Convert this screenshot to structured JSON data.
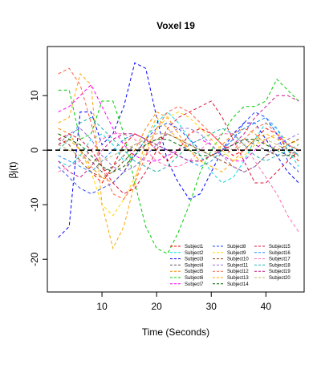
{
  "chart_data": {
    "type": "line",
    "title": "Voxel 19",
    "xlabel": "Time (Seconds)",
    "ylabel": "βj(t)",
    "xlim": [
      0,
      47
    ],
    "ylim": [
      -26,
      19
    ],
    "x_ticks": [
      10,
      20,
      30,
      40
    ],
    "y_ticks": [
      -20,
      -10,
      0,
      10
    ],
    "reference_line": {
      "y": 0,
      "style": "dashed",
      "color": "#000000"
    },
    "x": [
      2,
      4,
      6,
      8,
      10,
      12,
      14,
      16,
      18,
      20,
      22,
      24,
      26,
      28,
      30,
      32,
      34,
      36,
      38,
      40,
      42,
      44,
      46
    ],
    "series": [
      {
        "name": "Subject1",
        "color": "#FF0000",
        "values": [
          1,
          2,
          0,
          -4,
          -6,
          -3,
          1,
          3,
          2,
          0,
          -2,
          0,
          3,
          4,
          3,
          1,
          -1,
          0,
          2,
          4,
          3,
          0,
          -2
        ]
      },
      {
        "name": "Subject2",
        "color": "#00DDDD",
        "values": [
          -2,
          -3,
          -1,
          2,
          3,
          1,
          -2,
          -1,
          2,
          5,
          7,
          5,
          2,
          -1,
          -4,
          -6,
          -5,
          -2,
          2,
          5,
          4,
          0,
          -3
        ]
      },
      {
        "name": "Subject3",
        "color": "#0000FF",
        "values": [
          -16,
          -14,
          7,
          7,
          1,
          3,
          8,
          16,
          15,
          6,
          -2,
          -6,
          -9,
          -8,
          -4,
          0,
          3,
          5,
          5,
          2,
          -1,
          -4,
          -6
        ]
      },
      {
        "name": "Subject4",
        "color": "#555555",
        "values": [
          3,
          2,
          0,
          -2,
          -4,
          -3,
          -1,
          1,
          2,
          1,
          0,
          -1,
          -2,
          -2,
          -1,
          0,
          1,
          2,
          1,
          0,
          -1,
          -1,
          0
        ]
      },
      {
        "name": "Subject5",
        "color": "#FF8800",
        "values": [
          4,
          3,
          0,
          -3,
          -5,
          -6,
          -4,
          0,
          4,
          7,
          6,
          3,
          0,
          -2,
          -1,
          1,
          3,
          4,
          3,
          1,
          0,
          1,
          2
        ]
      },
      {
        "name": "Subject6",
        "color": "#00CC00",
        "values": [
          11,
          11,
          2,
          3,
          9,
          9,
          3,
          -6,
          -14,
          -18,
          -19,
          -15,
          -10,
          -4,
          0,
          3,
          6,
          8,
          8,
          9,
          13,
          11,
          9
        ]
      },
      {
        "name": "Subject7",
        "color": "#FF00FF",
        "values": [
          7,
          8,
          10,
          12,
          8,
          4,
          1,
          -1,
          -2,
          -2,
          -1,
          0,
          1,
          2,
          1,
          -1,
          -2,
          -2,
          0,
          2,
          3,
          1,
          0
        ]
      },
      {
        "name": "Subject8",
        "color": "#2244FF",
        "values": [
          -3,
          -5,
          -7,
          -8,
          -7,
          -6,
          -4,
          -1,
          2,
          4,
          5,
          4,
          2,
          0,
          -1,
          0,
          2,
          5,
          7,
          6,
          3,
          -2,
          -4
        ]
      },
      {
        "name": "Subject9",
        "color": "#FFD700",
        "values": [
          3,
          2,
          0,
          -4,
          -10,
          -12,
          -9,
          -5,
          0,
          4,
          6,
          7,
          6,
          4,
          2,
          0,
          -2,
          -1,
          1,
          2,
          3,
          2,
          1
        ]
      },
      {
        "name": "Subject10",
        "color": "#8B4513",
        "values": [
          2,
          1,
          -2,
          -4,
          -5,
          -4,
          -2,
          0,
          1,
          2,
          3,
          2,
          1,
          0,
          -1,
          -2,
          -3,
          -4,
          -3,
          -1,
          0,
          1,
          2
        ]
      },
      {
        "name": "Subject11",
        "color": "#9370DB",
        "values": [
          1,
          3,
          4,
          2,
          -1,
          -3,
          -4,
          -3,
          -1,
          1,
          3,
          4,
          4,
          3,
          1,
          -1,
          -3,
          -4,
          -3,
          -1,
          1,
          2,
          3
        ]
      },
      {
        "name": "Subject12",
        "color": "#FF6347",
        "values": [
          14,
          15,
          12,
          5,
          -3,
          -8,
          -9,
          -6,
          -1,
          4,
          7,
          8,
          7,
          5,
          3,
          1,
          0,
          2,
          4,
          5,
          3,
          1,
          0
        ]
      },
      {
        "name": "Subject13",
        "color": "#FFA500",
        "values": [
          5,
          6,
          14,
          12,
          -10,
          -18,
          -14,
          -6,
          2,
          6,
          4,
          2,
          0,
          -2,
          -3,
          -4,
          -2,
          0,
          2,
          3,
          2,
          1,
          0
        ]
      },
      {
        "name": "Subject14",
        "color": "#006400",
        "values": [
          3,
          2,
          1,
          -1,
          -3,
          -4,
          -3,
          -1,
          1,
          2,
          2,
          1,
          0,
          -1,
          -1,
          0,
          1,
          2,
          2,
          1,
          0,
          -1,
          -1
        ]
      },
      {
        "name": "Subject15",
        "color": "#DC143C",
        "values": [
          2,
          3,
          2,
          0,
          -3,
          -6,
          -8,
          -7,
          -4,
          0,
          4,
          6,
          7,
          8,
          9,
          6,
          2,
          -2,
          -6,
          -6,
          -4,
          -2,
          0
        ]
      },
      {
        "name": "Subject16",
        "color": "#1E90FF",
        "values": [
          -1,
          -2,
          -3,
          -4,
          -2,
          0,
          2,
          3,
          2,
          1,
          0,
          -1,
          -2,
          -3,
          -2,
          0,
          2,
          4,
          5,
          6,
          4,
          1,
          -1
        ]
      },
      {
        "name": "Subject17",
        "color": "#FF69B4",
        "values": [
          -4,
          -3,
          -2,
          0,
          2,
          3,
          3,
          2,
          0,
          -2,
          -3,
          -3,
          -2,
          0,
          2,
          3,
          3,
          1,
          -2,
          -5,
          -8,
          -12,
          -15
        ]
      },
      {
        "name": "Subject18",
        "color": "#20B2AA",
        "values": [
          0,
          2,
          5,
          6,
          4,
          2,
          0,
          -2,
          -3,
          -4,
          -3,
          -1,
          1,
          2,
          3,
          4,
          3,
          1,
          -1,
          -2,
          -1,
          0,
          1
        ]
      },
      {
        "name": "Subject19",
        "color": "#C71585",
        "values": [
          -2,
          -4,
          -5,
          -3,
          0,
          2,
          3,
          3,
          2,
          1,
          0,
          -1,
          -2,
          -2,
          -1,
          0,
          1,
          3,
          6,
          8,
          10,
          10,
          9
        ]
      },
      {
        "name": "Subject20",
        "color": "#BDB76B",
        "values": [
          1,
          0,
          -1,
          -2,
          -2,
          -1,
          0,
          1,
          2,
          3,
          3,
          2,
          1,
          0,
          -1,
          -1,
          0,
          1,
          2,
          2,
          1,
          0,
          -1
        ]
      }
    ],
    "legend": {
      "placement": "bottom-right",
      "columns": 3,
      "entries_per_column": 7
    },
    "grid": false
  }
}
